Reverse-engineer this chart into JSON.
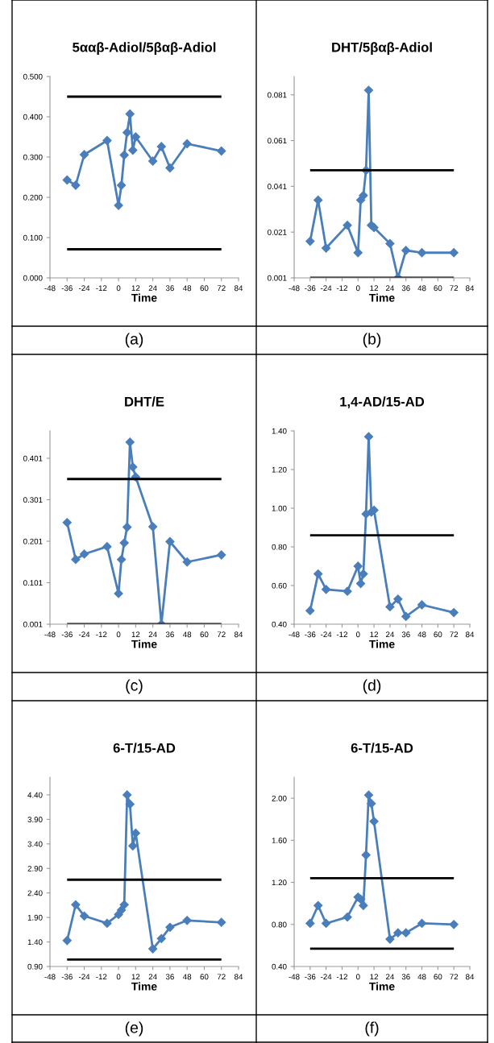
{
  "chart_data": [
    {
      "type": "line",
      "title": "5ααβ-Adiol/5βαβ-Adiol",
      "xlabel": "Time",
      "annotations": [
        "(a)"
      ],
      "marker": "diamond",
      "grid": false,
      "legend": false,
      "x": [
        -36,
        -30,
        -24,
        -8,
        0,
        2,
        4,
        6,
        8,
        10,
        12,
        24,
        30,
        36,
        48,
        72
      ],
      "series": [
        {
          "color": "#4a7ebb",
          "values": [
            0.243,
            0.23,
            0.306,
            0.341,
            0.18,
            0.23,
            0.305,
            0.361,
            0.407,
            0.317,
            0.35,
            0.29,
            0.326,
            0.273,
            0.333,
            0.315
          ]
        }
      ],
      "ref_lines": [
        {
          "axis": "y",
          "value": 0.45,
          "color": "#000000"
        },
        {
          "axis": "y",
          "value": 0.071,
          "color": "#000000"
        }
      ],
      "xlim": [
        -48,
        84
      ],
      "xticks": [
        -48,
        -36,
        -24,
        -12,
        0,
        12,
        24,
        36,
        48,
        60,
        72,
        84
      ],
      "ylim": [
        0,
        0.5
      ],
      "yticks": [
        {
          "value": 0,
          "label": "0.000"
        },
        {
          "value": 0.1,
          "label": "0.100"
        },
        {
          "value": 0.2,
          "label": "0.200"
        },
        {
          "value": 0.3,
          "label": "0.300"
        },
        {
          "value": 0.4,
          "label": "0.400"
        },
        {
          "value": 0.5,
          "label": "0.500"
        }
      ]
    },
    {
      "type": "line",
      "title": "DHT/5βαβ-Adiol",
      "xlabel": "Time",
      "annotations": [
        "(b)"
      ],
      "marker": "diamond",
      "grid": false,
      "legend": false,
      "x": [
        -36,
        -30,
        -24,
        -8,
        0,
        2,
        4,
        6,
        8,
        10,
        12,
        24,
        30,
        36,
        48,
        72
      ],
      "series": [
        {
          "color": "#4a7ebb",
          "values": [
            0.017,
            0.035,
            0.014,
            0.024,
            0.012,
            0.035,
            0.037,
            0.048,
            0.083,
            0.024,
            0.023,
            0.016,
            0.001,
            0.013,
            0.012,
            0.012
          ]
        }
      ],
      "ref_lines": [
        {
          "axis": "y",
          "value": 0.048,
          "color": "#000000"
        },
        {
          "axis": "y",
          "value": 0.001,
          "color": "#000000"
        }
      ],
      "xlim": [
        -48,
        84
      ],
      "xticks": [
        -48,
        -36,
        -24,
        -12,
        0,
        12,
        24,
        36,
        48,
        60,
        72,
        84
      ],
      "ylim": [
        0.001,
        0.089
      ],
      "yticks": [
        0.001,
        0.021,
        0.041,
        0.061,
        0.081
      ]
    },
    {
      "type": "line",
      "title": "DHT/E",
      "xlabel": "Time",
      "annotations": [
        "(c)"
      ],
      "marker": "diamond",
      "grid": false,
      "legend": false,
      "x": [
        -36,
        -30,
        -24,
        -8,
        0,
        2,
        4,
        6,
        8,
        10,
        12,
        24,
        30,
        36,
        48,
        72
      ],
      "series": [
        {
          "color": "#4a7ebb",
          "values": [
            0.246,
            0.157,
            0.17,
            0.188,
            0.075,
            0.157,
            0.197,
            0.235,
            0.44,
            0.38,
            0.356,
            0.236,
            0.001,
            0.2,
            0.151,
            0.168
          ]
        }
      ],
      "ref_lines": [
        {
          "axis": "y",
          "value": 0.351,
          "color": "#000000"
        },
        {
          "axis": "y",
          "value": 0.001,
          "color": "#000000"
        }
      ],
      "xlim": [
        -48,
        84
      ],
      "xticks": [
        -48,
        -36,
        -24,
        -12,
        0,
        12,
        24,
        36,
        48,
        60,
        72,
        84
      ],
      "ylim": [
        0.001,
        0.467
      ],
      "yticks": [
        0.001,
        0.101,
        0.201,
        0.301,
        0.401
      ]
    },
    {
      "type": "line",
      "title": "1,4-AD/15-AD",
      "xlabel": "Time",
      "annotations": [
        "(d)"
      ],
      "marker": "diamond",
      "grid": false,
      "legend": false,
      "x": [
        -36,
        -30,
        -24,
        -8,
        0,
        2,
        4,
        6,
        8,
        10,
        12,
        24,
        30,
        36,
        48,
        72
      ],
      "series": [
        {
          "color": "#4a7ebb",
          "values": [
            0.47,
            0.66,
            0.58,
            0.57,
            0.7,
            0.61,
            0.66,
            0.97,
            1.37,
            0.98,
            0.99,
            0.49,
            0.53,
            0.44,
            0.5,
            0.46
          ]
        }
      ],
      "ref_lines": [
        {
          "axis": "y",
          "value": 0.86,
          "color": "#000000"
        }
      ],
      "xlim": [
        -48,
        84
      ],
      "xticks": [
        -48,
        -36,
        -24,
        -12,
        0,
        12,
        24,
        36,
        48,
        60,
        72,
        84
      ],
      "ylim": [
        0.4,
        1.4
      ],
      "yticks": [
        {
          "value": 0.4,
          "label": "0.40"
        },
        {
          "value": 0.6,
          "label": "0.60"
        },
        {
          "value": 0.8,
          "label": "0.80"
        },
        {
          "value": 1.0,
          "label": "1.00"
        },
        {
          "value": 1.2,
          "label": "1.20"
        },
        {
          "value": 1.4,
          "label": "1.40"
        }
      ]
    },
    {
      "type": "line",
      "title": "6-T/15-AD",
      "xlabel": "Time",
      "annotations": [
        "(e)"
      ],
      "marker": "diamond",
      "grid": false,
      "legend": false,
      "x": [
        -36,
        -30,
        -24,
        -8,
        0,
        2,
        4,
        6,
        8,
        10,
        12,
        24,
        30,
        36,
        48,
        72
      ],
      "series": [
        {
          "color": "#4a7ebb",
          "values": [
            1.43,
            2.16,
            1.93,
            1.78,
            1.96,
            2.05,
            2.16,
            4.4,
            4.21,
            3.36,
            3.62,
            1.26,
            1.47,
            1.7,
            1.84,
            1.8
          ]
        }
      ],
      "ref_lines": [
        {
          "axis": "y",
          "value": 2.67,
          "color": "#000000"
        },
        {
          "axis": "y",
          "value": 1.04,
          "color": "#000000"
        }
      ],
      "xlim": [
        -48,
        84
      ],
      "xticks": [
        -48,
        -36,
        -24,
        -12,
        0,
        12,
        24,
        36,
        48,
        60,
        72,
        84
      ],
      "ylim": [
        0.9,
        4.76
      ],
      "yticks": [
        {
          "value": 0.9,
          "label": "0.90"
        },
        {
          "value": 1.4,
          "label": "1.40"
        },
        {
          "value": 1.9,
          "label": "1.90"
        },
        {
          "value": 2.4,
          "label": "2.40"
        },
        {
          "value": 2.9,
          "label": "2.90"
        },
        {
          "value": 3.4,
          "label": "3.40"
        },
        {
          "value": 3.9,
          "label": "3.90"
        },
        {
          "value": 4.4,
          "label": "4.40"
        }
      ]
    },
    {
      "type": "line",
      "title": "6-T/15-AD",
      "xlabel": "Time",
      "annotations": [
        "(f)"
      ],
      "marker": "diamond",
      "grid": false,
      "legend": false,
      "x": [
        -36,
        -30,
        -24,
        -8,
        0,
        2,
        4,
        6,
        8,
        10,
        12,
        24,
        30,
        36,
        48,
        72
      ],
      "series": [
        {
          "color": "#4a7ebb",
          "values": [
            0.81,
            0.98,
            0.81,
            0.87,
            1.06,
            1.04,
            0.98,
            1.46,
            2.03,
            1.95,
            1.78,
            0.66,
            0.72,
            0.72,
            0.81,
            0.8
          ]
        }
      ],
      "ref_lines": [
        {
          "axis": "y",
          "value": 1.24,
          "color": "#000000"
        },
        {
          "axis": "y",
          "value": 0.57,
          "color": "#000000"
        }
      ],
      "xlim": [
        -48,
        84
      ],
      "xticks": [
        -48,
        -36,
        -24,
        -12,
        0,
        12,
        24,
        36,
        48,
        60,
        72,
        84
      ],
      "ylim": [
        0.4,
        2.2
      ],
      "yticks": [
        {
          "value": 0.4,
          "label": "0.40"
        },
        {
          "value": 0.8,
          "label": "0.80"
        },
        {
          "value": 1.2,
          "label": "1.20"
        },
        {
          "value": 1.6,
          "label": "1.60"
        },
        {
          "value": 2.0,
          "label": "2.00"
        }
      ]
    }
  ]
}
